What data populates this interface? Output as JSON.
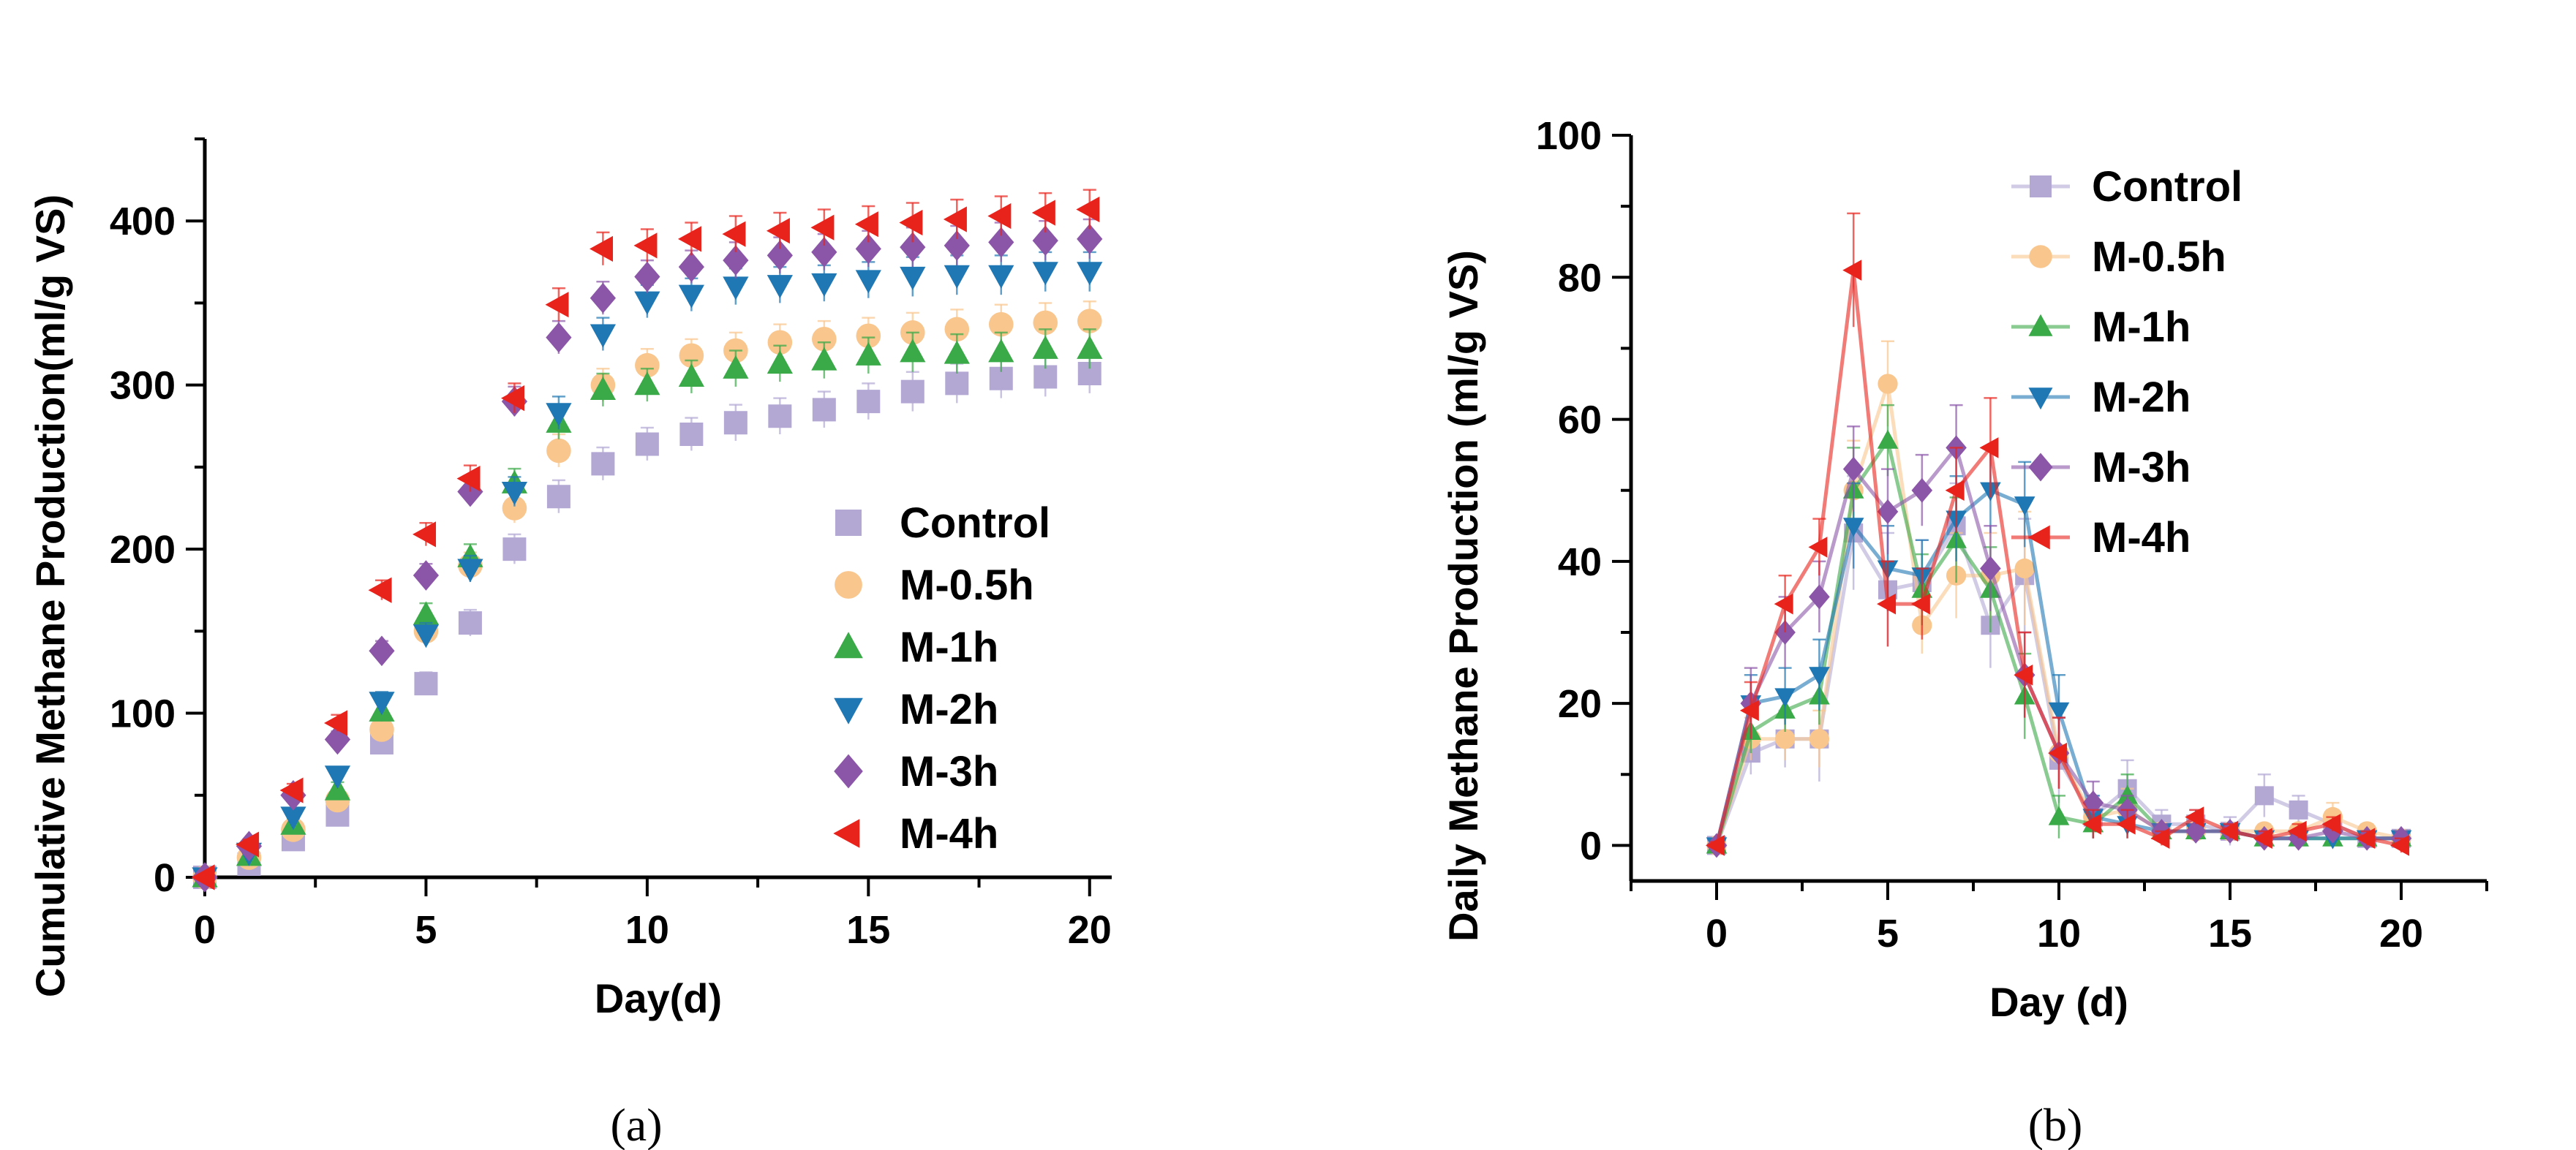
{
  "colors": {
    "Control": "#b3a8d4",
    "M-0.5h": "#f9c68e",
    "M-1h": "#3aa948",
    "M-2h": "#1f77b4",
    "M-3h": "#8b56a8",
    "M-4h": "#e8231c"
  },
  "chart_data": [
    {
      "type": "scatter",
      "panel_label": "(a)",
      "xlabel": "Day(d)",
      "ylabel": "Cumulative Methane Production(ml/g VS)",
      "xlim": [
        0,
        20.5
      ],
      "ylim": [
        0,
        450
      ],
      "xticks": [
        0,
        5,
        10,
        15,
        20
      ],
      "yticks": [
        0,
        100,
        200,
        300,
        400
      ],
      "x": [
        0,
        1,
        2,
        3,
        4,
        5,
        6,
        7,
        8,
        9,
        10,
        11,
        12,
        13,
        14,
        15,
        16,
        17,
        18,
        19,
        20
      ],
      "legend_position": "bottom-right",
      "series": [
        {
          "name": "Control",
          "marker": "square",
          "values": [
            0,
            8,
            23,
            38,
            82,
            118,
            155,
            200,
            232,
            252,
            264,
            270,
            277,
            281,
            285,
            290,
            296,
            301,
            304,
            305,
            307
          ],
          "errors": [
            2,
            3,
            4,
            5,
            6,
            7,
            8,
            9,
            10,
            10,
            10,
            10,
            11,
            11,
            11,
            11,
            12,
            12,
            12,
            12,
            12
          ]
        },
        {
          "name": "M-0.5h",
          "marker": "circle",
          "values": [
            0,
            12,
            29,
            47,
            90,
            150,
            190,
            225,
            260,
            300,
            312,
            318,
            321,
            326,
            328,
            330,
            332,
            334,
            337,
            338,
            339
          ],
          "errors": [
            2,
            3,
            4,
            5,
            6,
            7,
            8,
            9,
            10,
            10,
            10,
            10,
            11,
            11,
            11,
            11,
            12,
            12,
            12,
            12,
            12
          ]
        },
        {
          "name": "M-1h",
          "marker": "triangle-up",
          "values": [
            0,
            13,
            32,
            53,
            101,
            160,
            195,
            240,
            277,
            297,
            300,
            305,
            310,
            313,
            315,
            318,
            320,
            319,
            320,
            322,
            322
          ],
          "errors": [
            2,
            3,
            4,
            5,
            6,
            7,
            8,
            9,
            10,
            10,
            10,
            10,
            11,
            11,
            11,
            11,
            12,
            12,
            12,
            12,
            12
          ]
        },
        {
          "name": "M-2h",
          "marker": "triangle-down",
          "values": [
            0,
            15,
            37,
            62,
            107,
            148,
            188,
            235,
            283,
            331,
            351,
            355,
            360,
            361,
            362,
            364,
            366,
            367,
            367,
            369,
            369
          ],
          "errors": [
            2,
            3,
            4,
            5,
            6,
            7,
            8,
            9,
            10,
            10,
            10,
            10,
            11,
            11,
            11,
            11,
            12,
            12,
            12,
            12,
            12
          ]
        },
        {
          "name": "M-3h",
          "marker": "diamond",
          "values": [
            0,
            19,
            50,
            84,
            138,
            184,
            235,
            290,
            329,
            353,
            366,
            372,
            376,
            379,
            381,
            383,
            384,
            385,
            387,
            388,
            389
          ],
          "errors": [
            2,
            3,
            4,
            5,
            6,
            7,
            8,
            9,
            10,
            10,
            10,
            10,
            11,
            11,
            11,
            11,
            12,
            12,
            12,
            12,
            12
          ]
        },
        {
          "name": "M-4h",
          "marker": "triangle-left",
          "values": [
            0,
            20,
            53,
            94,
            175,
            209,
            243,
            292,
            349,
            383,
            385,
            389,
            392,
            394,
            396,
            398,
            399,
            401,
            403,
            405,
            407
          ],
          "errors": [
            2,
            3,
            4,
            5,
            6,
            7,
            8,
            9,
            10,
            10,
            10,
            10,
            11,
            11,
            11,
            11,
            12,
            12,
            12,
            12,
            12
          ]
        }
      ]
    },
    {
      "type": "line",
      "panel_label": "(b)",
      "xlabel": "Day (d)",
      "ylabel": "Daily Methane Production (ml/g VS)",
      "xlim": [
        -2.5,
        22.5
      ],
      "ylim": [
        -5,
        100
      ],
      "xticks": [
        0,
        5,
        10,
        15,
        20
      ],
      "yticks": [
        0,
        20,
        40,
        60,
        80,
        100
      ],
      "x": [
        0,
        1,
        2,
        3,
        4,
        5,
        6,
        7,
        8,
        9,
        10,
        11,
        12,
        13,
        14,
        15,
        16,
        17,
        18,
        19,
        20
      ],
      "legend_position": "top-right",
      "series": [
        {
          "name": "Control",
          "marker": "square",
          "values": [
            0,
            13,
            15,
            15,
            44,
            36,
            37,
            45,
            31,
            38,
            12,
            4,
            8,
            3,
            3,
            2,
            7,
            5,
            3,
            1,
            1
          ],
          "errors": [
            0.5,
            3,
            4,
            6,
            8,
            8,
            6,
            6,
            6,
            8,
            6,
            3,
            4,
            2,
            2,
            2,
            3,
            2,
            2,
            1,
            1
          ]
        },
        {
          "name": "M-0.5h",
          "marker": "circle",
          "values": [
            0,
            15,
            15,
            15,
            50,
            65,
            31,
            38,
            38,
            39,
            13,
            4,
            5,
            2,
            2,
            2,
            2,
            2,
            4,
            2,
            1
          ],
          "errors": [
            0.5,
            3,
            3,
            4,
            7,
            6,
            4,
            6,
            6,
            8,
            5,
            2,
            3,
            1,
            1,
            1,
            1,
            1,
            2,
            1,
            1
          ]
        },
        {
          "name": "M-1h",
          "marker": "triangle-up",
          "values": [
            0,
            16,
            19,
            21,
            50,
            57,
            36,
            43,
            36,
            21,
            4,
            3,
            7,
            2,
            2,
            2,
            1,
            1,
            1,
            1,
            1
          ],
          "errors": [
            0.5,
            3,
            3,
            4,
            6,
            5,
            5,
            6,
            6,
            6,
            3,
            2,
            3,
            1,
            1,
            1,
            1,
            1,
            1,
            1,
            1
          ]
        },
        {
          "name": "M-2h",
          "marker": "triangle-down",
          "values": [
            0,
            20,
            21,
            24,
            45,
            39,
            38,
            46,
            50,
            48,
            19,
            4,
            3,
            2,
            2,
            2,
            1,
            1,
            1,
            1,
            1
          ],
          "errors": [
            0.5,
            4,
            4,
            5,
            6,
            6,
            5,
            6,
            6,
            6,
            5,
            3,
            2,
            1,
            1,
            1,
            1,
            1,
            1,
            1,
            1
          ]
        },
        {
          "name": "M-3h",
          "marker": "diamond",
          "values": [
            0,
            20,
            30,
            35,
            53,
            47,
            50,
            56,
            39,
            24,
            13,
            6,
            5,
            2,
            2,
            2,
            1,
            1,
            2,
            1,
            1
          ],
          "errors": [
            0.5,
            5,
            5,
            5,
            6,
            6,
            5,
            6,
            6,
            6,
            5,
            3,
            2,
            1,
            1,
            1,
            1,
            1,
            1,
            1,
            1
          ]
        },
        {
          "name": "M-4h",
          "marker": "triangle-left",
          "values": [
            0,
            19,
            34,
            42,
            81,
            34,
            34,
            50,
            56,
            24,
            13,
            3,
            3,
            1,
            4,
            2,
            1,
            2,
            3,
            1,
            0
          ],
          "errors": [
            0.5,
            4,
            4,
            4,
            8,
            6,
            5,
            6,
            7,
            6,
            5,
            2,
            2,
            1,
            1,
            1,
            1,
            1,
            1,
            1,
            1
          ]
        }
      ]
    }
  ]
}
